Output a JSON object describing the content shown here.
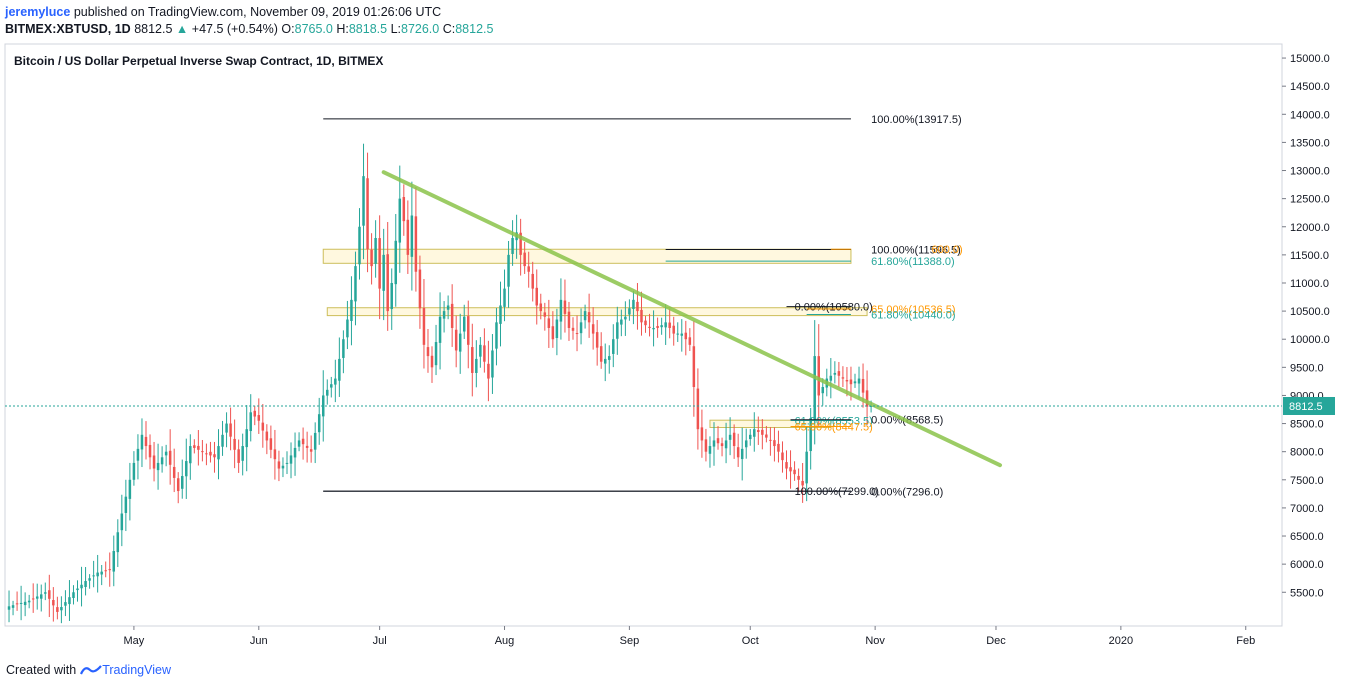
{
  "header": {
    "username": "jeremyluce",
    "published_text": "published on TradingView.com, November 09, 2019 01:26:06 UTC",
    "symbol": "BITMEX:XBTUSD, 1D",
    "last": "8812.5",
    "change": "+47.5 (+0.54%)",
    "open_label": "O:",
    "open": "8765.0",
    "high_label": "H:",
    "high": "8818.5",
    "low_label": "L:",
    "low": "8726.0",
    "close_label": "C:",
    "close": "8812.5"
  },
  "footer": {
    "created_with": "Created with",
    "brand": "TradingView"
  },
  "colors": {
    "up": "#26a69a",
    "down": "#ef5350",
    "trend": "#8bc34a",
    "fib_orange": "#ff9800",
    "fib_teal": "#26a69a",
    "fib_black": "#131722",
    "price_tag": "#26a69a",
    "zone_fill": "#fff8dc",
    "zone_stroke": "#c8b84a"
  },
  "chart_data": {
    "type": "candlestick",
    "title": "Bitcoin / US Dollar Perpetual Inverse Swap Contract, 1D, BITMEX",
    "y_axis": {
      "min": 4900,
      "max": 15250,
      "ticks": [
        5500,
        6000,
        6500,
        7000,
        7500,
        8000,
        8500,
        9000,
        9500,
        10000,
        10500,
        11000,
        11500,
        12000,
        12500,
        13000,
        13500,
        14000,
        14500,
        15000
      ],
      "tick_labels": [
        "5500.0",
        "6000.0",
        "6500.0",
        "7000.0",
        "7500.0",
        "8000.0",
        "8500.0",
        "9000.0",
        "9500.0",
        "10000.0",
        "10500.0",
        "11000.0",
        "11500.0",
        "12000.0",
        "12500.0",
        "13000.0",
        "13500.0",
        "14000.0",
        "14500.0",
        "15000.0"
      ]
    },
    "x_axis": {
      "start_day": -32,
      "end_day": 285,
      "ticks": [
        {
          "day": 0,
          "label": "May"
        },
        {
          "day": 31,
          "label": "Jun"
        },
        {
          "day": 61,
          "label": "Jul"
        },
        {
          "day": 92,
          "label": "Aug"
        },
        {
          "day": 123,
          "label": "Sep"
        },
        {
          "day": 153,
          "label": "Oct"
        },
        {
          "day": 184,
          "label": "Nov"
        },
        {
          "day": 214,
          "label": "Dec"
        },
        {
          "day": 245,
          "label": "2020"
        },
        {
          "day": 276,
          "label": "Feb"
        }
      ]
    },
    "last_price": 8812.5,
    "last_price_label": "8812.5",
    "anchors": [
      [
        -31,
        5250
      ],
      [
        -26,
        5350
      ],
      [
        -22,
        5500
      ],
      [
        -19,
        5150
      ],
      [
        -15,
        5500
      ],
      [
        -12,
        5700
      ],
      [
        -9,
        5850
      ],
      [
        -6,
        5900
      ],
      [
        -3,
        6900
      ],
      [
        0,
        7800
      ],
      [
        2,
        8300
      ],
      [
        5,
        7700
      ],
      [
        8,
        8000
      ],
      [
        11,
        7300
      ],
      [
        14,
        8100
      ],
      [
        17,
        8000
      ],
      [
        20,
        7900
      ],
      [
        23,
        8500
      ],
      [
        26,
        7800
      ],
      [
        29,
        8700
      ],
      [
        31,
        8550
      ],
      [
        33,
        8200
      ],
      [
        36,
        7700
      ],
      [
        38,
        7800
      ],
      [
        41,
        8200
      ],
      [
        44,
        8000
      ],
      [
        47,
        9000
      ],
      [
        50,
        9300
      ],
      [
        52,
        10000
      ],
      [
        54,
        10700
      ],
      [
        55,
        11300
      ],
      [
        56,
        12000
      ],
      [
        57,
        12900
      ],
      [
        58,
        11600
      ],
      [
        59,
        11300
      ],
      [
        60,
        11800
      ],
      [
        61,
        10900
      ],
      [
        62,
        11500
      ],
      [
        63,
        10500
      ],
      [
        64,
        11000
      ],
      [
        66,
        12500
      ],
      [
        67,
        12100
      ],
      [
        68,
        11500
      ],
      [
        69,
        12200
      ],
      [
        70,
        11200
      ],
      [
        72,
        9900
      ],
      [
        74,
        9500
      ],
      [
        76,
        10400
      ],
      [
        78,
        10600
      ],
      [
        80,
        9800
      ],
      [
        82,
        10400
      ],
      [
        84,
        9400
      ],
      [
        86,
        9900
      ],
      [
        88,
        9300
      ],
      [
        90,
        10300
      ],
      [
        92,
        10900
      ],
      [
        93,
        11500
      ],
      [
        94,
        11800
      ],
      [
        95,
        11900
      ],
      [
        96,
        11500
      ],
      [
        97,
        11300
      ],
      [
        98,
        11200
      ],
      [
        100,
        10600
      ],
      [
        102,
        10400
      ],
      [
        104,
        10000
      ],
      [
        106,
        10700
      ],
      [
        108,
        10200
      ],
      [
        110,
        10100
      ],
      [
        112,
        10500
      ],
      [
        114,
        10100
      ],
      [
        116,
        9600
      ],
      [
        118,
        9700
      ],
      [
        120,
        10300
      ],
      [
        122,
        10400
      ],
      [
        124,
        10700
      ],
      [
        126,
        10300
      ],
      [
        128,
        10200
      ],
      [
        130,
        10200
      ],
      [
        132,
        10300
      ],
      [
        134,
        10100
      ],
      [
        136,
        10100
      ],
      [
        138,
        9900
      ],
      [
        140,
        8400
      ],
      [
        142,
        8000
      ],
      [
        144,
        8200
      ],
      [
        146,
        8100
      ],
      [
        148,
        8300
      ],
      [
        150,
        7900
      ],
      [
        152,
        8200
      ],
      [
        154,
        8400
      ],
      [
        156,
        8300
      ],
      [
        158,
        8200
      ],
      [
        160,
        8000
      ],
      [
        162,
        7700
      ],
      [
        164,
        7600
      ],
      [
        166,
        7400
      ],
      [
        168,
        8600
      ],
      [
        169,
        9700
      ],
      [
        170,
        9000
      ],
      [
        172,
        9300
      ],
      [
        174,
        9400
      ],
      [
        176,
        9300
      ],
      [
        178,
        9200
      ],
      [
        180,
        9300
      ],
      [
        182,
        8800
      ],
      [
        183,
        8812.5
      ]
    ],
    "trendline": {
      "from": [
        62,
        12970
      ],
      "to": [
        215,
        7760
      ]
    },
    "fib_levels": [
      {
        "x1": 47,
        "x2": 178,
        "price": 13917.5,
        "label": "100.00%(13917.5)",
        "label_day": 183,
        "color": "black"
      },
      {
        "x1": 132,
        "x2": 178,
        "price": 11596.5,
        "label": "100.00%(11596.5)",
        "label_day": 183,
        "color": "black"
      },
      {
        "x1": 132,
        "x2": 178,
        "price": 11388.0,
        "label": "61.80%(11388.0)",
        "label_day": 183,
        "color": "teal"
      },
      {
        "x1": 173,
        "x2": 178,
        "price": 11600.0,
        "label": "600.0)",
        "label_day": 198,
        "color": "orange"
      },
      {
        "x1": 162,
        "x2": 178,
        "price": 10580.0,
        "label": "0.00%(10580.0)",
        "label_day": 164,
        "color": "black"
      },
      {
        "x1": 167,
        "x2": 178,
        "price": 10536.5,
        "label": "65.00%(10536.5)",
        "label_day": 183,
        "color": "orange"
      },
      {
        "x1": 167,
        "x2": 178,
        "price": 10440.0,
        "label": "61.80%(10440.0)",
        "label_day": 183,
        "color": "teal"
      },
      {
        "x1": 163,
        "x2": 178,
        "price": 8553.5,
        "label": "61.80%(8553.5)",
        "label_day": 164,
        "color": "teal"
      },
      {
        "x1": 163,
        "x2": 178,
        "price": 8447.5,
        "label": "65.00%(8447.5)",
        "label_day": 164,
        "color": "orange"
      },
      {
        "x1": 163,
        "x2": 178,
        "price": 8568.5,
        "label": "0.00%(8568.5)",
        "label_day": 183,
        "color": "black"
      },
      {
        "x1": 47,
        "x2": 178,
        "price": 7299.0,
        "label": "100.00%(7299.0)",
        "label_day": 164,
        "color": "black"
      },
      {
        "x1": 47,
        "x2": 178,
        "price": 7296.0,
        "label": "0.00%(7296.0)",
        "label_day": 183,
        "color": "black"
      }
    ],
    "zones": [
      {
        "from_day": 47,
        "to_day": 178,
        "top": 11600,
        "bottom": 11350
      },
      {
        "from_day": 48,
        "to_day": 182,
        "top": 10560,
        "bottom": 10420
      },
      {
        "from_day": 143,
        "to_day": 173,
        "top": 8560,
        "bottom": 8430
      }
    ]
  }
}
